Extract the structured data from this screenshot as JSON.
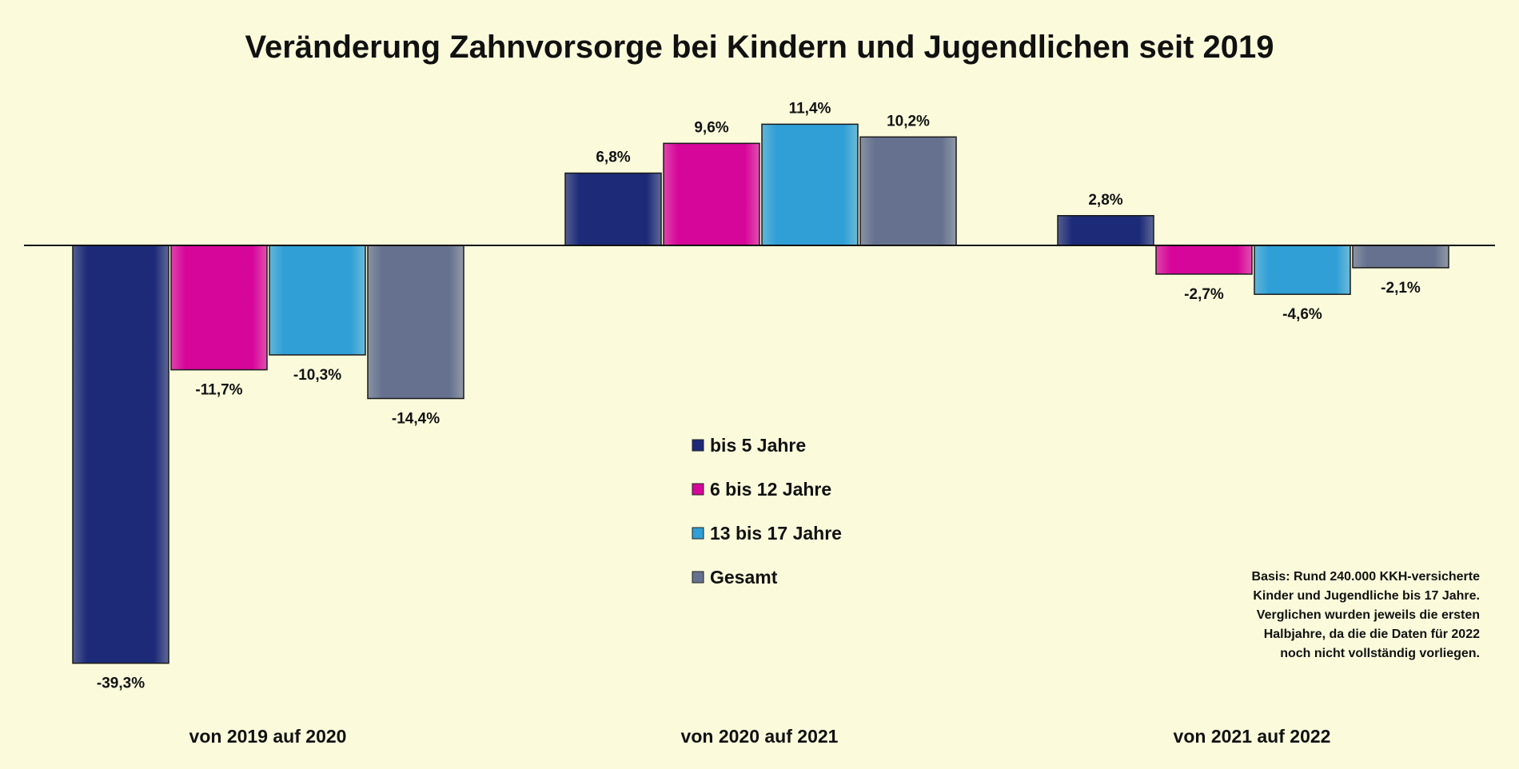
{
  "chart_data": {
    "type": "bar",
    "title": "Veränderung Zahnvorsorge bei Kindern und Jugendlichen seit 2019",
    "categories": [
      "von 2019 auf 2020",
      "von 2020 auf 2021",
      "von 2021 auf 2022"
    ],
    "series": [
      {
        "name": "bis 5 Jahre",
        "color": "#1c2a78",
        "values": [
          -39.3,
          6.8,
          2.8
        ],
        "labels": [
          "-39,3%",
          "6,8%",
          "2,8%"
        ]
      },
      {
        "name": "6 bis 12 Jahre",
        "color": "#d6069a",
        "values": [
          -11.7,
          9.6,
          -2.7
        ],
        "labels": [
          "-11,7%",
          "9,6%",
          "-2,7%"
        ]
      },
      {
        "name": "13 bis 17 Jahre",
        "color": "#2f9fd6",
        "values": [
          -10.3,
          11.4,
          -4.6
        ],
        "labels": [
          "-10,3%",
          "11,4%",
          "-4,6%"
        ]
      },
      {
        "name": "Gesamt",
        "color": "#65718f",
        "values": [
          -14.4,
          10.2,
          -2.1
        ],
        "labels": [
          "-14,4%",
          "10,2%",
          "-2,1%"
        ]
      }
    ],
    "ylim": [
      -45,
      15
    ],
    "xlabel": "",
    "ylabel": "",
    "legend": "center",
    "annotation": [
      "Basis: Rund 240.000 KKH-versicherte",
      "Kinder und Jugendliche bis 17 Jahre.",
      "Verglichen wurden jeweils die ersten",
      "Halbjahre, da die die Daten für 2022",
      "noch nicht vollständig vorliegen."
    ]
  }
}
